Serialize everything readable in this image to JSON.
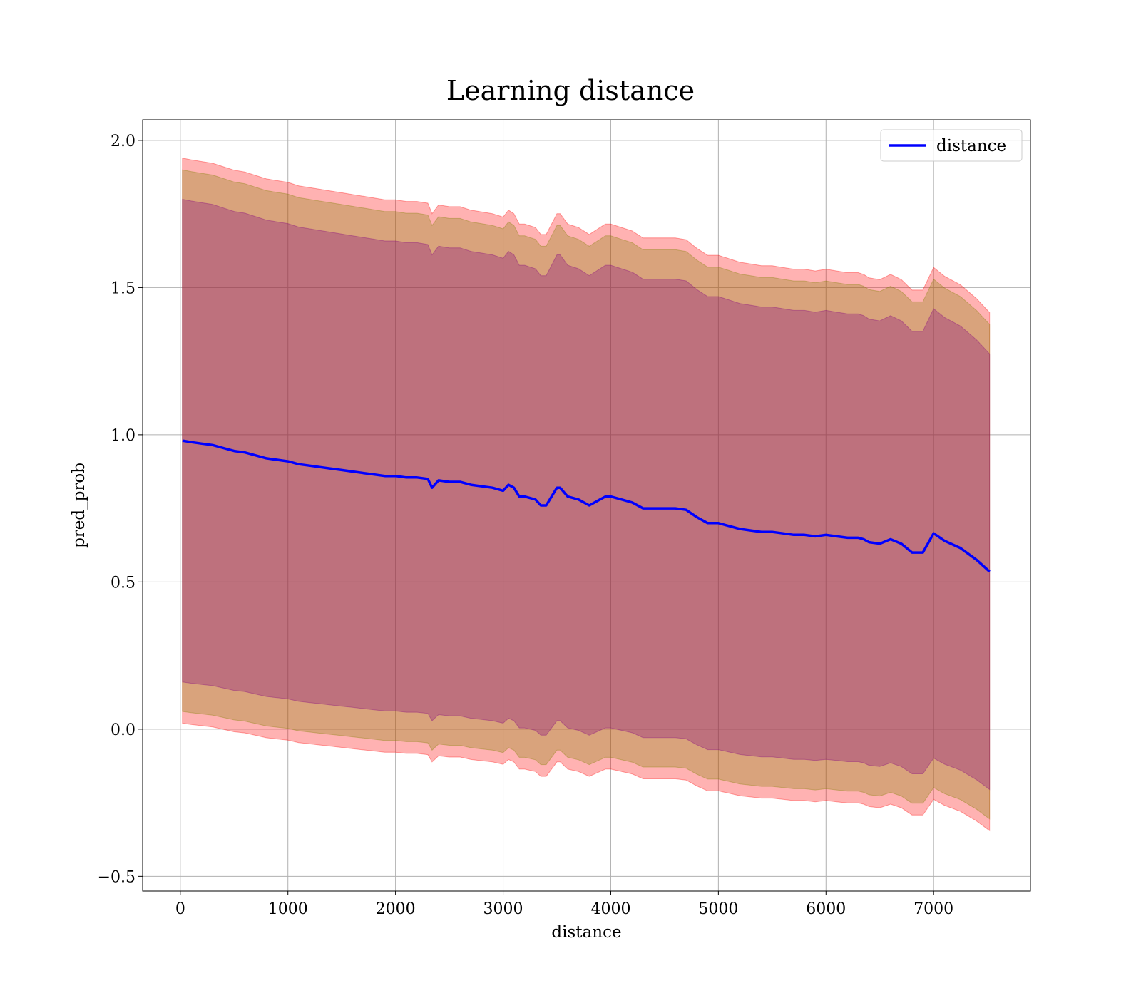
{
  "chart_data": {
    "type": "line",
    "title": "Learning distance",
    "xlabel": "distance",
    "ylabel": "pred_prob",
    "xlim": [
      -350,
      7900
    ],
    "ylim": [
      -0.55,
      2.07
    ],
    "xticks": [
      0,
      1000,
      2000,
      3000,
      4000,
      5000,
      6000,
      7000
    ],
    "yticks": [
      -0.5,
      0.0,
      0.5,
      1.0,
      1.5,
      2.0
    ],
    "ytick_labels": [
      "−0.5",
      "0.0",
      "0.5",
      "1.0",
      "1.5",
      "2.0"
    ],
    "grid": true,
    "legend": {
      "position": "top-right",
      "entries": [
        "distance"
      ]
    },
    "colors": {
      "line": "#0000ff",
      "outer_band": "#ff0000",
      "middle_band": "#808000",
      "inner_band": "#800080"
    },
    "x": [
      20,
      100,
      200,
      300,
      400,
      500,
      600,
      700,
      800,
      900,
      1000,
      1100,
      1200,
      1300,
      1400,
      1500,
      1600,
      1700,
      1800,
      1900,
      2000,
      2100,
      2200,
      2300,
      2340,
      2400,
      2500,
      2600,
      2700,
      2800,
      2900,
      3000,
      3050,
      3100,
      3150,
      3200,
      3300,
      3350,
      3400,
      3450,
      3500,
      3530,
      3600,
      3700,
      3800,
      3900,
      3950,
      4000,
      4100,
      4200,
      4300,
      4400,
      4500,
      4600,
      4700,
      4800,
      4900,
      5000,
      5100,
      5200,
      5300,
      5400,
      5500,
      5600,
      5700,
      5800,
      5900,
      6000,
      6100,
      6200,
      6300,
      6350,
      6400,
      6500,
      6600,
      6700,
      6800,
      6900,
      7000,
      7100,
      7250,
      7400,
      7520
    ],
    "series": [
      {
        "name": "distance",
        "values": [
          0.98,
          0.975,
          0.97,
          0.965,
          0.955,
          0.945,
          0.94,
          0.93,
          0.92,
          0.915,
          0.91,
          0.9,
          0.895,
          0.89,
          0.885,
          0.88,
          0.875,
          0.87,
          0.865,
          0.86,
          0.86,
          0.855,
          0.855,
          0.85,
          0.82,
          0.845,
          0.84,
          0.84,
          0.83,
          0.825,
          0.82,
          0.81,
          0.83,
          0.82,
          0.79,
          0.79,
          0.78,
          0.76,
          0.76,
          0.79,
          0.82,
          0.82,
          0.79,
          0.78,
          0.76,
          0.78,
          0.79,
          0.79,
          0.78,
          0.77,
          0.75,
          0.75,
          0.75,
          0.75,
          0.745,
          0.72,
          0.7,
          0.7,
          0.69,
          0.68,
          0.675,
          0.67,
          0.67,
          0.665,
          0.66,
          0.66,
          0.655,
          0.66,
          0.655,
          0.65,
          0.65,
          0.645,
          0.635,
          0.63,
          0.645,
          0.63,
          0.6,
          0.6,
          0.665,
          0.64,
          0.615,
          0.575,
          0.535
        ]
      }
    ],
    "bands": [
      {
        "label_halfwidth": 0.96
      },
      {
        "label_halfwidth": 0.92
      },
      {
        "label_halfwidth": 0.82
      }
    ]
  }
}
